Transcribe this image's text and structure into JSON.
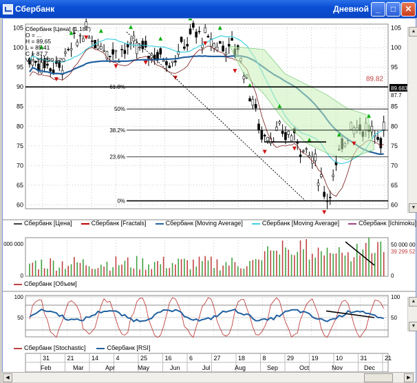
{
  "window": {
    "title": "Сбербанк",
    "mode": "Дневной"
  },
  "price_axis": [
    "105",
    "100",
    "95",
    "90",
    "85",
    "80",
    "75",
    "70",
    "65",
    "60"
  ],
  "price_axis_values": [
    105,
    100,
    95,
    90,
    85,
    80,
    75,
    70,
    65,
    60
  ],
  "price_labels": {
    "last": "89.82",
    "box": "89.6831",
    "below": "87.7"
  },
  "fib": [
    "61.8%",
    "50%",
    "38.2%",
    "23.6%",
    "0%"
  ],
  "info": [
    "Сбербанк [Цена] (1,187)",
    "O = ...",
    "H = 89,65",
    "L = 85,41",
    "C = 87,7",
    "V = 39 299 520"
  ],
  "legend_price": [
    {
      "label": "Сбербанк [Цена]",
      "color": "#404040"
    },
    {
      "label": "Сбербанк [Fractals]",
      "color": "#c00000"
    },
    {
      "label": "Сбербанк [Moving Average]",
      "color": "#2060a0"
    },
    {
      "label": "Сбербанк [Moving Average]",
      "color": "#40d0e0"
    },
    {
      "label": "Сбербанк [Ichimoku]",
      "color": "#a04080"
    }
  ],
  "volume": {
    "axis_left_top": "000 000",
    "axis_left_bottom": "0",
    "axis_right_top": "50 000 000",
    "axis_right_bottom": "0",
    "last": "39 299 520",
    "legend": "Сбербанк [Объем]"
  },
  "osc": {
    "axis_left": [
      "100",
      "50"
    ],
    "axis_right": [
      "100",
      "50"
    ],
    "legend": [
      {
        "label": "Сбербанк [Stochastic]",
        "color": "#c04040"
      },
      {
        "label": "Сбербанк [RSI]",
        "color": "#2060a0"
      }
    ]
  },
  "dates": [
    "31",
    "21",
    "14",
    "4",
    "25",
    "16",
    "6",
    "27",
    "18",
    "8",
    "29",
    "19",
    "10",
    "31",
    "21"
  ],
  "months": [
    "Feb",
    "Mar",
    "Apr",
    "May",
    "Jun",
    "Jul",
    "Aug",
    "Sep",
    "Oct",
    "Nov",
    "Dec"
  ],
  "colors": {
    "bg": "#ffffff",
    "grid": "#c8c8c8",
    "candle": "#000000",
    "ma_dark": "#2060a0",
    "ma_light": "#40d0e0",
    "fractal_up": "#10b010",
    "fractal_down": "#d01010",
    "volume_up": "#c04040",
    "volume_down": "#40a040"
  }
}
